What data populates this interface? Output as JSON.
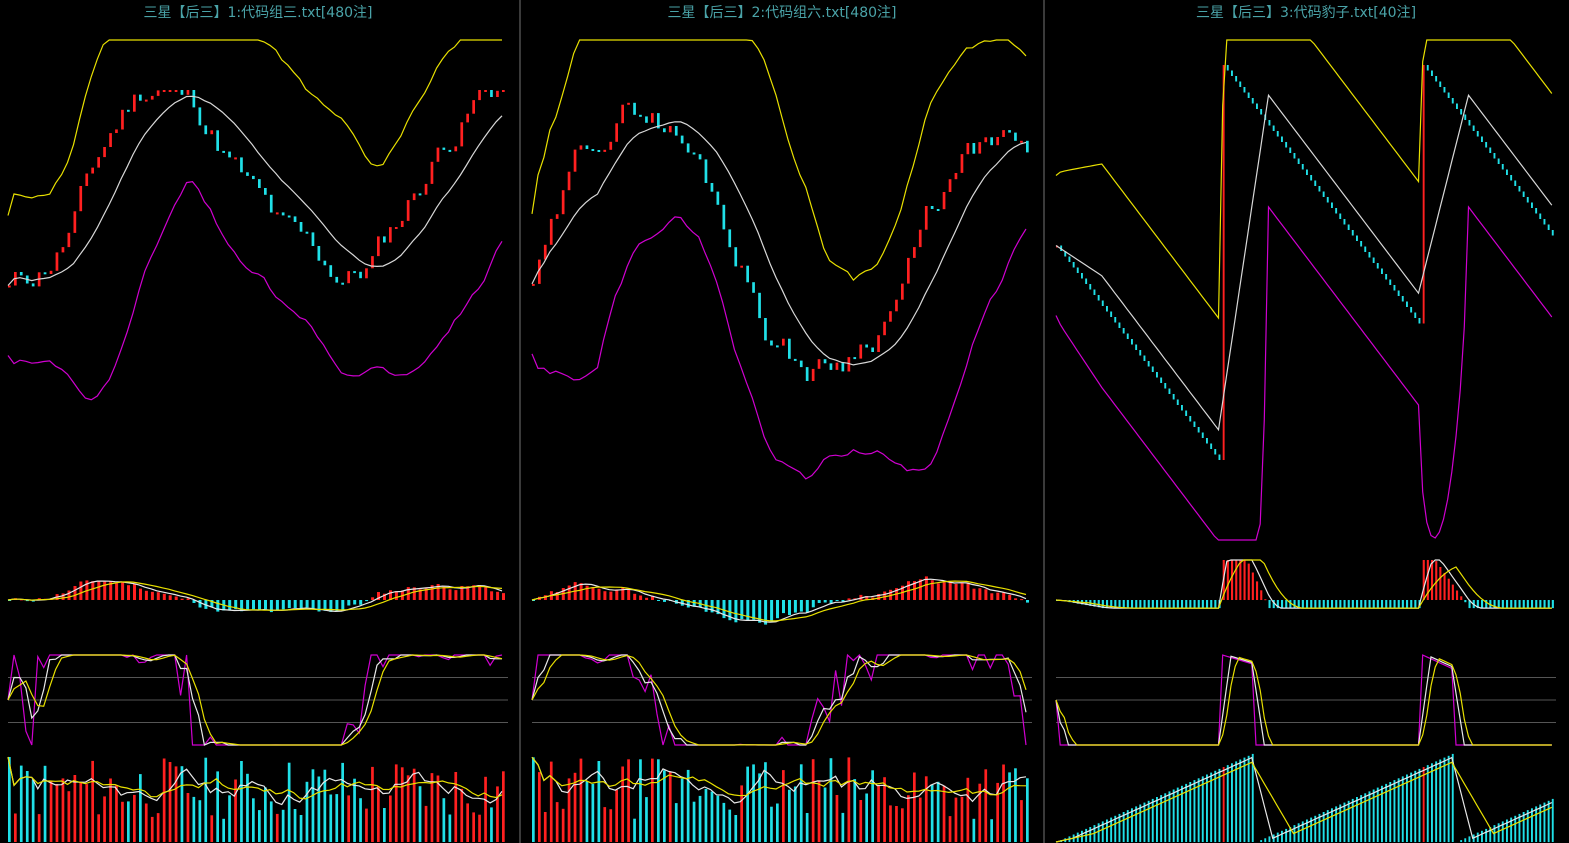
{
  "panels": [
    {
      "title": "三星【后三】1:代码组三.txt[480注]",
      "kind": "oscillating",
      "seed": 11
    },
    {
      "title": "三星【后三】2:代码组六.txt[480注]",
      "kind": "oscillating",
      "seed": 29
    },
    {
      "title": "三星【后三】3:代码豹子.txt[40注]",
      "kind": "sawtooth",
      "seed": 47
    }
  ],
  "colors": {
    "background": "#000000",
    "up": "#ff2020",
    "down": "#20e0e8",
    "upper_band": "#e8e000",
    "middle_band": "#d8d8d8",
    "lower_band": "#d000d0",
    "signal": "#e8e000",
    "fast": "#e8e8e8",
    "k_line": "#d000d0",
    "ref_line": "#555555"
  },
  "chart_data": [
    {
      "type": "candlestick",
      "panel": 1,
      "indicators": [
        "upper-band",
        "middle-band",
        "lower-band",
        "histogram",
        "oscillator",
        "volume"
      ]
    },
    {
      "type": "candlestick",
      "panel": 2,
      "indicators": [
        "upper-band",
        "middle-band",
        "lower-band",
        "histogram",
        "oscillator",
        "volume"
      ]
    },
    {
      "type": "candlestick",
      "panel": 3,
      "indicators": [
        "upper-band",
        "middle-band",
        "lower-band",
        "histogram",
        "oscillator",
        "volume"
      ]
    }
  ]
}
